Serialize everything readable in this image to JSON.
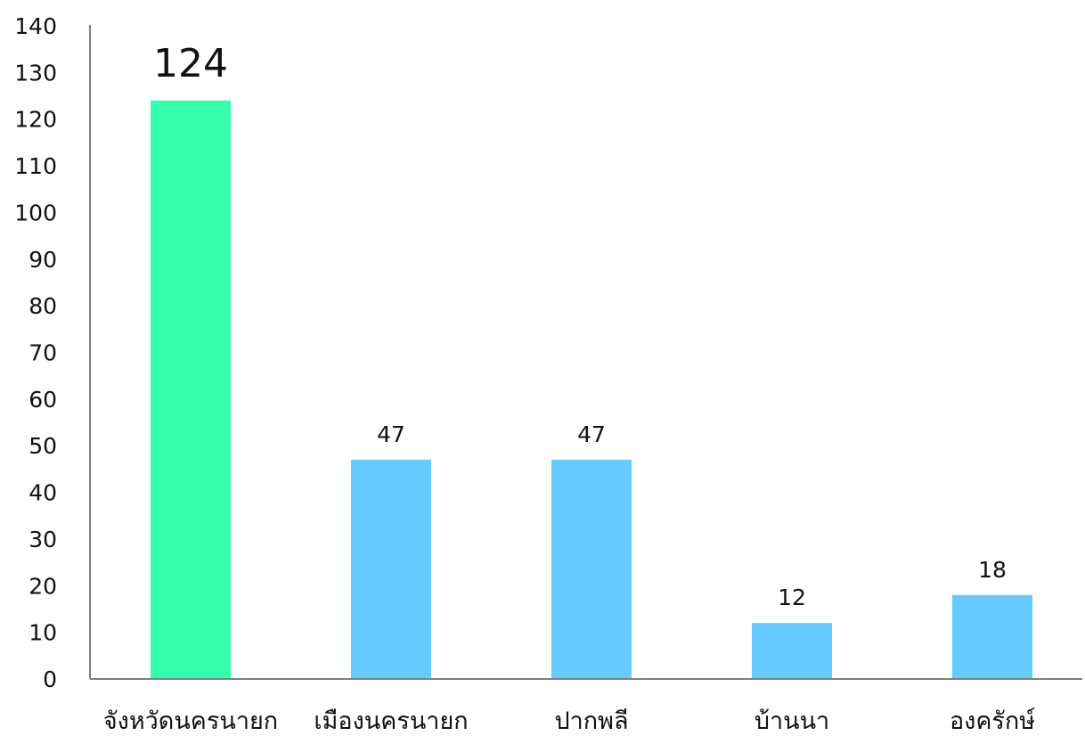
{
  "chart_data": {
    "type": "bar",
    "title": "",
    "xlabel": "",
    "ylabel": "",
    "ylim": [
      0,
      140
    ],
    "yticks": [
      0,
      10,
      20,
      30,
      40,
      50,
      60,
      70,
      80,
      90,
      100,
      110,
      120,
      130,
      140
    ],
    "grid": false,
    "legend": "none",
    "categories": [
      "จังหวัดนครนายก",
      "เมืองนครนายก",
      "ปากพลี",
      "บ้านนา",
      "องครักษ์"
    ],
    "values": [
      124,
      47,
      47,
      12,
      18
    ],
    "value_labels": [
      "124",
      "47",
      "47",
      "12",
      "18"
    ],
    "colors": [
      "#33ffad",
      "#66ccff",
      "#66ccff",
      "#66ccff",
      "#66ccff"
    ],
    "axis_color": "#7f7f7f"
  }
}
